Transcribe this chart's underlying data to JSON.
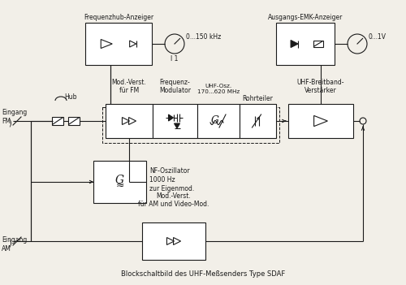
{
  "title": "Blockschaltbild des UHF-Meßsenders Type SDAF",
  "bg_color": "#f2efe8",
  "line_color": "#1a1a1a",
  "box_fill": "#ffffff",
  "labels": {
    "freq_hub_anzeiger": "Frequenzhub-Anzeiger",
    "ausgangs_emk": "Ausgangs-EMK-Anzeiger",
    "mod_verst_fm": "Mod.-Verst.\nfür FM",
    "frequenz_mod": "Frequenz-\nModulator",
    "uhf_osz": "UHF-Osz.\n170...620 MHz",
    "rohrteiler": "Rohrteiler",
    "uhf_breitband": "UHF-Breitband-\nVerstärker",
    "nf_osz": "NF-Oszillator\n1000 Hz\nzur Eigenmod.",
    "mod_verst_am": "Mod.-Verst.\nfür AM und Video-Mod.",
    "eingang_fm": "Eingang\nFM",
    "eingang_am": "Eingang\nAM",
    "hub": "Hub",
    "i1": "I 1",
    "freq_range": "0...150 kHz",
    "volt_range": "0...1V"
  }
}
